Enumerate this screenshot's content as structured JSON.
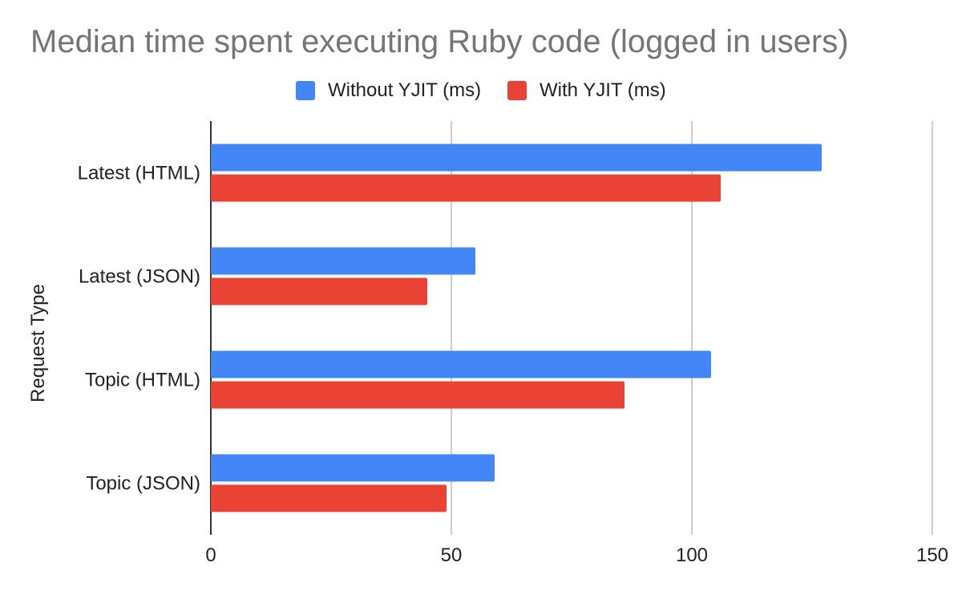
{
  "chart_data": {
    "type": "bar",
    "orientation": "horizontal",
    "title": "Median time spent executing Ruby code (logged in users)",
    "xlabel": "",
    "ylabel": "Request Type",
    "categories": [
      "Latest (HTML)",
      "Latest (JSON)",
      "Topic (HTML)",
      "Topic (JSON)"
    ],
    "series": [
      {
        "name": "Without YJIT (ms)",
        "color": "#4285F4",
        "values": [
          127,
          55,
          104,
          59
        ]
      },
      {
        "name": "With YJIT (ms)",
        "color": "#EA4335",
        "values": [
          106,
          45,
          86,
          49
        ]
      }
    ],
    "xlim": [
      0,
      150
    ],
    "xticks": [
      "0",
      "50",
      "100",
      "150"
    ],
    "grid": true,
    "legend_position": "top"
  }
}
